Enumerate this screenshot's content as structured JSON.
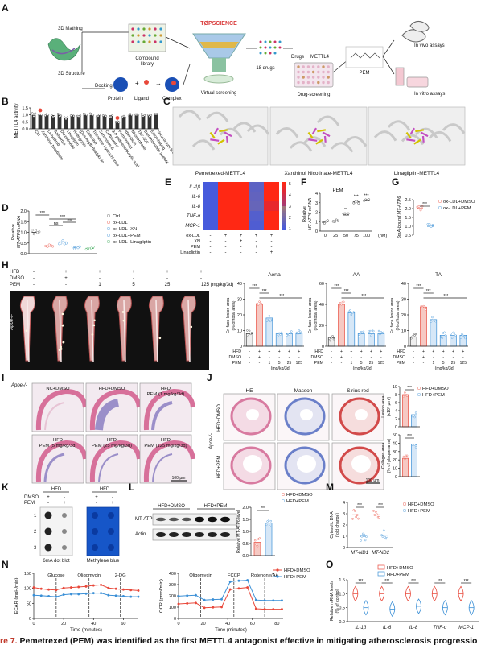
{
  "figure": {
    "caption_label": "re 7.",
    "caption_text": " Pemetrexed (PEM) was identified as the first METTL4 antagonist effective in mitigating atherosclerosis progressio"
  },
  "panel_A": {
    "letter": "A",
    "mathing": "3D Mathing",
    "structure": "3D Structure",
    "docking": "Docking",
    "protein": "Protein",
    "ligand": "Ligand",
    "complex": "Complex",
    "compound_library": [
      "Compound",
      "library"
    ],
    "topscience": "TØPSCIENCE",
    "virtual_screening": "Virtual screening",
    "drugs18": "18 drugs",
    "drugs": "Drugs",
    "mettl4": "METTL4",
    "drug_screening": "Drug-screening",
    "pem": "PEM",
    "in_vivo": "In vivo assays",
    "in_vitro": "In vitro assays"
  },
  "panel_B": {
    "letter": "B",
    "ylabel": "METTL4 activity",
    "yticks": [
      "1.5",
      "1.0",
      "0.5",
      "0.0"
    ],
    "drugs": [
      "Ctrl",
      "Xanthinol Nicotinate",
      "Lenvatinib",
      "Azilsartan",
      "Diazodoxide",
      "Linagliptin",
      "Raltegravir",
      "[Des-Arg9]-Bradykinin",
      "Entecavir",
      "Trizoxime Hydrochloride",
      "Sennoside B",
      "Ceftriaxone",
      "3-Pyridinecarboxylic acid",
      "Pemetrexed",
      "Idarubicin",
      "Mitoxantrone",
      "TAK-659",
      "Bremelanotide acetate",
      "Eltrombopag",
      "Vecuronium bromide"
    ],
    "values": [
      1.0,
      1.0,
      0.97,
      0.98,
      1.0,
      0.8,
      0.98,
      0.93,
      1.0,
      0.98,
      0.97,
      0.93,
      0.96,
      0.55,
      0.85,
      1.0,
      0.95,
      0.98,
      0.97,
      1.0
    ]
  },
  "panel_C": {
    "letter": "C",
    "labels": [
      "Pemetrexed-METTL4",
      "Xanthinol Nicotinate-METTL4",
      "Linagliptin-METTL4"
    ]
  },
  "panel_D": {
    "letter": "D",
    "ylabel": [
      "Relative",
      "MT-ATP6 mRNA"
    ],
    "yticks": [
      "2.0",
      "1.5",
      "1.0",
      "0.5",
      "0.0"
    ],
    "legend": [
      "Ctrl",
      "ox-LDL",
      "ox-LDL+XN",
      "ox-LDL+PEM",
      "ox-LDL+Linagliptin"
    ],
    "colors": [
      "#555555",
      "#e8483a",
      "#3a8fd6",
      "#3a8fd6",
      "#3aa857"
    ],
    "values": [
      1.0,
      0.35,
      0.55,
      0.3,
      0.25
    ],
    "sig": [
      "***",
      "***",
      "ns",
      "ns"
    ]
  },
  "panel_E": {
    "letter": "E",
    "rows": [
      "IL-1β",
      "IL-6",
      "IL-8",
      "TNF-α",
      "MCP-1"
    ],
    "conditions": [
      {
        "name": "ox-LDL",
        "marks": [
          "-",
          "+",
          "+",
          "+",
          "+"
        ]
      },
      {
        "name": "XN",
        "marks": [
          "-",
          "-",
          "+",
          "-",
          "-"
        ]
      },
      {
        "name": "PEM",
        "marks": [
          "-",
          "-",
          "-",
          "+",
          "-"
        ]
      },
      {
        "name": "Linagliptin",
        "marks": [
          "-",
          "-",
          "-",
          "-",
          "+"
        ]
      }
    ],
    "values": [
      [
        1,
        5,
        5,
        1.5,
        5
      ],
      [
        1,
        5,
        5,
        1.6,
        5
      ],
      [
        1,
        5,
        5,
        1.7,
        4.5
      ],
      [
        1,
        5,
        5,
        1.3,
        5
      ],
      [
        1,
        5,
        5,
        1.2,
        5
      ]
    ],
    "scale": [
      "5",
      "4",
      "3",
      "2",
      "1"
    ]
  },
  "panel_F": {
    "letter": "F",
    "title": "PEM",
    "ylabel": [
      "Relative",
      "MT-ATP6 mRNA"
    ],
    "yticks": [
      "4",
      "3",
      "2",
      "1",
      "0"
    ],
    "categories": [
      "0",
      "25",
      "50",
      "75",
      "100"
    ],
    "unit": "(nM)",
    "values": [
      1.0,
      1.1,
      1.7,
      3.1,
      3.2
    ],
    "sig": [
      "**",
      "***",
      "***"
    ]
  },
  "panel_G": {
    "letter": "G",
    "ylabel": "6mA-bound MT-ATP6",
    "yticks": [
      "2.5",
      "2.0",
      "1.5",
      "1.0",
      "0.5"
    ],
    "legend": [
      "ox-LDL+DMSO",
      "ox-LDL+PEM"
    ],
    "values": [
      2.0,
      1.0
    ],
    "sig": "***"
  },
  "panel_H": {
    "letter": "H",
    "rows": [
      {
        "name": "HFD",
        "marks": [
          "-",
          "+",
          "+",
          "+",
          "+",
          "+"
        ]
      },
      {
        "name": "DMSO",
        "marks": [
          "-",
          "+",
          "-",
          "-",
          "-",
          "-"
        ]
      },
      {
        "name": "PEM",
        "marks": [
          "-",
          "-",
          "1",
          "5",
          "25",
          "125 (mg/kg/3d)"
        ]
      }
    ],
    "genotype": "Apoe-/-",
    "charts": [
      {
        "title": "Aorta",
        "ylabel": [
          "En face lesion area",
          "(% of total area)"
        ],
        "yticks": [
          "40",
          "30",
          "20",
          "10",
          "0"
        ],
        "values": [
          8,
          27,
          18,
          8,
          8,
          8
        ]
      },
      {
        "title": "AA",
        "ylabel": [
          "En face lesion area",
          "(% of total area)"
        ],
        "yticks": [
          "60",
          "40",
          "20",
          "0"
        ],
        "values": [
          8,
          40,
          32,
          12,
          12,
          12
        ]
      },
      {
        "title": "TA",
        "ylabel": [
          "En face lesion area",
          "(% of total area)"
        ],
        "yticks": [
          "40",
          "30",
          "20",
          "10",
          "0"
        ],
        "values": [
          6,
          25,
          17,
          7,
          7,
          7
        ]
      }
    ],
    "conds": [
      "HFD",
      "DMSO",
      "PEM"
    ],
    "cond_marks": [
      [
        "-",
        "+",
        "+",
        "+",
        "+",
        "+"
      ],
      [
        "-",
        "+",
        "-",
        "-",
        "-",
        "-"
      ],
      [
        "-",
        "-",
        "1",
        "5",
        "25",
        "125"
      ]
    ],
    "unit": "(mg/kg/3d)",
    "sig": [
      "***",
      "***",
      "***"
    ]
  },
  "panel_I": {
    "letter": "I",
    "genotype": "Apoe-/-",
    "labels": [
      "NC+DMSO",
      "HFD+DMSO",
      "HFD\nPEM (1 mg/kg/3d)",
      "HFD\nPEM (5 mg/kg/3d)",
      "HFD\nPEM (25 mg/kg/3d)",
      "HFD\nPEM (125 mg/kg/3d)"
    ],
    "scalebar": "100 μm"
  },
  "panel_J": {
    "letter": "J",
    "columns": [
      "HE",
      "Masson",
      "Sirius red"
    ],
    "rows": [
      "HFD+DMSO",
      "HFD+PEM"
    ],
    "genotype": "Apoe-/-",
    "scalebar": "100 μm",
    "legend": [
      "HFD+DMSO",
      "HFD+PEM"
    ],
    "chart1": {
      "ylabel": [
        "Lesion area",
        "(x10⁵ μm²)"
      ],
      "yticks": [
        "10",
        "8",
        "6",
        "4",
        "2",
        "0"
      ],
      "values": [
        8,
        3
      ],
      "sig": "***"
    },
    "chart2": {
      "ylabel": [
        "Collagen area",
        "(% of plaque area)"
      ],
      "yticks": [
        "50",
        "40",
        "30",
        "20",
        "10",
        "0"
      ],
      "values": [
        22,
        38
      ],
      "sig": "***"
    }
  },
  "panel_K": {
    "letter": "K",
    "hfd": [
      "HFD",
      "HFD"
    ],
    "dmso": "DMSO",
    "pem": "PEM",
    "marks_dmso": [
      "+",
      "-",
      "+",
      "-"
    ],
    "marks_pem": [
      "-",
      "+",
      "-",
      "+"
    ],
    "rows": [
      "1",
      "2",
      "3"
    ],
    "labels": [
      "6mA dot blot",
      "Methylene blue"
    ]
  },
  "panel_L": {
    "letter": "L",
    "groups": [
      "HFD+DMSO",
      "HFD+PEM"
    ],
    "bands": [
      "MT-ATP6",
      "Actin"
    ],
    "ylabel": "Relative MT-ATP6 level",
    "yticks": [
      "2.0",
      "1.5",
      "1.0",
      "0.5",
      "0.0"
    ],
    "legend": [
      "HFD+DMSO",
      "HFD+PEM"
    ],
    "values": [
      0.55,
      1.35
    ],
    "sig": "***"
  },
  "panel_M": {
    "letter": "M",
    "ylabel": [
      "Cytosolic DNA",
      "(fold change)"
    ],
    "yticks": [
      "4",
      "3",
      "2",
      "1",
      "0"
    ],
    "categories": [
      "MT-ND1",
      "MT-ND2"
    ],
    "legend": [
      "HFD+DMSO",
      "HFD+PEM"
    ],
    "values": [
      [
        2.9,
        1.0
      ],
      [
        2.9,
        1.1
      ]
    ],
    "sig": [
      "***",
      "***"
    ]
  },
  "panel_N": {
    "letter": "N",
    "ecar": {
      "ylabel": "ECAR (mpH/min)",
      "xlabel": "Time (minutes)",
      "yticks": [
        "150",
        "100",
        "50",
        "0"
      ],
      "xticks": [
        "0",
        "20",
        "40",
        "60"
      ],
      "annotations": [
        "Glucose",
        "Oligomycin",
        "2-DG"
      ],
      "x": [
        0,
        5,
        10,
        15,
        20,
        25,
        30,
        35,
        40,
        45,
        50,
        55,
        60,
        65,
        70
      ],
      "series": [
        {
          "name": "HFD+DMSO",
          "values": [
            120,
            115,
            112,
            110,
            118,
            120,
            122,
            124,
            128,
            130,
            118,
            115,
            112,
            110,
            108
          ]
        },
        {
          "name": "HFD+PEM",
          "values": [
            90,
            88,
            86,
            84,
            92,
            94,
            94,
            96,
            98,
            98,
            90,
            88,
            86,
            84,
            84
          ]
        }
      ]
    },
    "ocr": {
      "ylabel": "OCR (pmol/min)",
      "xlabel": "Time (minutes)",
      "yticks": [
        "400",
        "300",
        "200",
        "100",
        "0"
      ],
      "xticks": [
        "0",
        "20",
        "40",
        "60",
        "80"
      ],
      "annotations": [
        "Oligomycin",
        "FCCP",
        "Rotenone/AA"
      ],
      "x": [
        0,
        7,
        14,
        21,
        28,
        35,
        42,
        49,
        56,
        63,
        70,
        77,
        84
      ],
      "series": [
        {
          "name": "HFD+DMSO",
          "values": [
            150,
            155,
            160,
            110,
            115,
            118,
            300,
            310,
            320,
            100,
            95,
            95,
            95
          ]
        },
        {
          "name": "HFD+PEM",
          "values": [
            230,
            235,
            240,
            190,
            195,
            198,
            380,
            390,
            395,
            190,
            185,
            185,
            185
          ]
        }
      ]
    },
    "legend": [
      "HFD+DMSO",
      "HFD+PEM"
    ]
  },
  "panel_O": {
    "letter": "O",
    "ylabel": [
      "Relative mRNA levels",
      "(% of control)"
    ],
    "yticks": [
      "1.5",
      "1.0",
      "0.5",
      "0.0"
    ],
    "categories": [
      "IL-1β",
      "IL-6",
      "IL-8",
      "TNF-α",
      "MCP-1"
    ],
    "legend": [
      "HFD+DMSO",
      "HFD+PEM"
    ],
    "values": [
      [
        1.0,
        0.5
      ],
      [
        1.0,
        0.45
      ],
      [
        1.0,
        0.55
      ],
      [
        1.0,
        0.5
      ],
      [
        1.0,
        0.5
      ]
    ],
    "sig": [
      "***",
      "***",
      "***",
      "***",
      "***"
    ]
  },
  "chart_data": [
    {
      "type": "bar",
      "panel": "B",
      "ylabel": "METTL4 activity",
      "ylim": [
        0,
        1.5
      ],
      "categories": [
        "Ctrl",
        "Xanthinol Nicotinate",
        "Lenvatinib",
        "Azilsartan",
        "Diazodoxide",
        "Linagliptin",
        "Raltegravir",
        "[Des-Arg9]-Bradykinin",
        "Entecavir",
        "Trizoxime Hydrochloride",
        "Sennoside B",
        "Ceftriaxone",
        "3-Pyridinecarboxylic acid",
        "Pemetrexed",
        "Idarubicin",
        "Mitoxantrone",
        "TAK-659",
        "Bremelanotide acetate",
        "Eltrombopag",
        "Vecuronium bromide"
      ],
      "values": [
        1.0,
        1.0,
        0.97,
        0.98,
        1.0,
        0.8,
        0.98,
        0.93,
        1.0,
        0.98,
        0.97,
        0.93,
        0.96,
        0.55,
        0.85,
        1.0,
        0.95,
        0.98,
        0.97,
        1.0
      ]
    },
    {
      "type": "bar",
      "panel": "D",
      "ylim": [
        0,
        2.0
      ],
      "categories": [
        "Ctrl",
        "ox-LDL",
        "ox-LDL+XN",
        "ox-LDL+PEM",
        "ox-LDL+Linagliptin"
      ],
      "values": [
        1.0,
        0.35,
        0.55,
        0.3,
        0.25
      ]
    },
    {
      "type": "heatmap",
      "panel": "E",
      "rows": [
        "IL-1β",
        "IL-6",
        "IL-8",
        "TNF-α",
        "MCP-1"
      ],
      "values": [
        [
          1,
          5,
          5,
          1.5,
          5
        ],
        [
          1,
          5,
          5,
          1.6,
          5
        ],
        [
          1,
          5,
          5,
          1.7,
          4.5
        ],
        [
          1,
          5,
          5,
          1.3,
          5
        ],
        [
          1,
          5,
          5,
          1.2,
          5
        ]
      ]
    },
    {
      "type": "bar",
      "panel": "F",
      "title": "PEM",
      "categories": [
        "0",
        "25",
        "50",
        "75",
        "100"
      ],
      "values": [
        1.0,
        1.1,
        1.7,
        3.1,
        3.2
      ],
      "ylim": [
        0,
        4
      ]
    },
    {
      "type": "bar",
      "panel": "G",
      "categories": [
        "ox-LDL+DMSO",
        "ox-LDL+PEM"
      ],
      "values": [
        2.0,
        1.0
      ],
      "ylim": [
        0.5,
        2.5
      ]
    },
    {
      "type": "bar",
      "panel": "H-Aorta",
      "title": "Aorta",
      "values": [
        8,
        27,
        18,
        8,
        8,
        8
      ],
      "ylim": [
        0,
        40
      ]
    },
    {
      "type": "bar",
      "panel": "H-AA",
      "title": "AA",
      "values": [
        8,
        40,
        32,
        12,
        12,
        12
      ],
      "ylim": [
        0,
        60
      ]
    },
    {
      "type": "bar",
      "panel": "H-TA",
      "title": "TA",
      "values": [
        6,
        25,
        17,
        7,
        7,
        7
      ],
      "ylim": [
        0,
        40
      ]
    },
    {
      "type": "bar",
      "panel": "J-lesion",
      "categories": [
        "HFD+DMSO",
        "HFD+PEM"
      ],
      "values": [
        8,
        3
      ],
      "ylim": [
        0,
        10
      ]
    },
    {
      "type": "bar",
      "panel": "J-collagen",
      "categories": [
        "HFD+DMSO",
        "HFD+PEM"
      ],
      "values": [
        22,
        38
      ],
      "ylim": [
        0,
        50
      ]
    },
    {
      "type": "bar",
      "panel": "L",
      "categories": [
        "HFD+DMSO",
        "HFD+PEM"
      ],
      "values": [
        0.55,
        1.35
      ],
      "ylim": [
        0,
        2.0
      ]
    },
    {
      "type": "bar",
      "panel": "M",
      "categories": [
        "MT-ND1",
        "MT-ND2"
      ],
      "series": [
        {
          "name": "HFD+DMSO",
          "values": [
            2.9,
            2.9
          ]
        },
        {
          "name": "HFD+PEM",
          "values": [
            1.0,
            1.1
          ]
        }
      ],
      "ylim": [
        0,
        4
      ]
    },
    {
      "type": "line",
      "panel": "N-ECAR",
      "xlabel": "Time (minutes)",
      "ylabel": "ECAR (mpH/min)",
      "ylim": [
        0,
        150
      ],
      "xlim": [
        0,
        70
      ]
    },
    {
      "type": "line",
      "panel": "N-OCR",
      "xlabel": "Time (minutes)",
      "ylabel": "OCR (pmol/min)",
      "ylim": [
        0,
        400
      ],
      "xlim": [
        0,
        85
      ]
    },
    {
      "type": "bar",
      "panel": "O",
      "categories": [
        "IL-1β",
        "IL-6",
        "IL-8",
        "TNF-α",
        "MCP-1"
      ],
      "series": [
        {
          "name": "HFD+DMSO",
          "values": [
            1.0,
            1.0,
            1.0,
            1.0,
            1.0
          ]
        },
        {
          "name": "HFD+PEM",
          "values": [
            0.5,
            0.45,
            0.55,
            0.5,
            0.5
          ]
        }
      ],
      "ylim": [
        0,
        1.5
      ]
    }
  ]
}
